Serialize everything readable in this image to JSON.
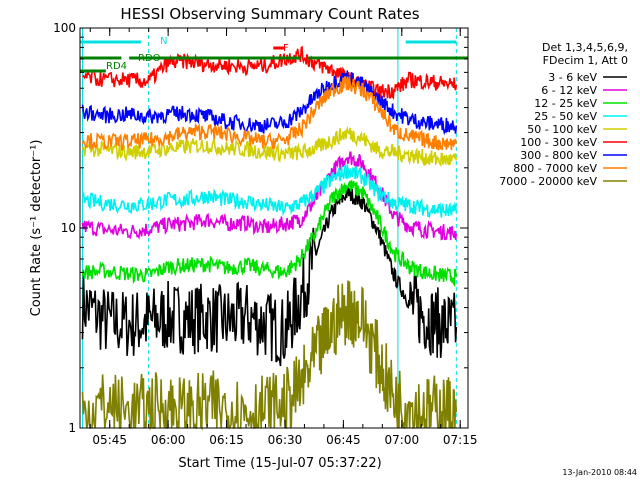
{
  "chart_data": {
    "type": "line",
    "title": "HESSI Observing Summary Count Rates",
    "xlabel": "Start Time (15-Jul-07 05:37:22)",
    "ylabel": "Count Rate (s⁻¹ detector⁻¹)",
    "footer": "13-Jan-2010 08:44",
    "y_scale": "log",
    "ylim": [
      1,
      100
    ],
    "xlim": [
      "05:37:22",
      "07:17:00"
    ],
    "x_ticks": [
      "05:45",
      "06:00",
      "06:15",
      "06:30",
      "06:45",
      "07:00",
      "07:15"
    ],
    "y_ticks": [
      "1",
      "10",
      "100"
    ],
    "legend_header": [
      "Det 1,3,4,5,6,9,",
      "FDecim 1, Att 0"
    ],
    "legend_position": "right",
    "grid": false,
    "x": [
      "05:38",
      "05:44",
      "05:50",
      "05:55",
      "06:00",
      "06:05",
      "06:10",
      "06:15",
      "06:20",
      "06:25",
      "06:30",
      "06:34",
      "06:38",
      "06:42",
      "06:46",
      "06:50",
      "06:54",
      "06:58",
      "07:02",
      "07:06",
      "07:10",
      "07:14"
    ],
    "series": [
      {
        "name": "3 - 6 keV",
        "color": "#000000",
        "values": [
          4.2,
          3.4,
          3.3,
          3.4,
          3.6,
          3.5,
          3.6,
          3.4,
          3.6,
          3.3,
          3.0,
          4.5,
          7.5,
          12.0,
          15.0,
          13.5,
          9.5,
          5.8,
          4.2,
          3.6,
          3.3,
          3.2
        ]
      },
      {
        "name": "6 - 12 keV",
        "color": "#e000e0",
        "values": [
          10.2,
          9.8,
          9.6,
          9.9,
          10.4,
          10.5,
          11.0,
          10.5,
          10.6,
          10.0,
          10.5,
          11.0,
          14.0,
          19.0,
          23.0,
          21.0,
          16.0,
          11.5,
          10.2,
          9.8,
          9.6,
          9.4
        ]
      },
      {
        "name": "12 - 25 keV",
        "color": "#00e000",
        "values": [
          6.0,
          6.1,
          5.9,
          5.8,
          6.4,
          6.5,
          6.6,
          6.3,
          6.5,
          6.2,
          6.0,
          7.0,
          9.5,
          14.0,
          16.5,
          15.0,
          11.0,
          7.5,
          6.4,
          6.0,
          5.8,
          5.7
        ]
      },
      {
        "name": "25 - 50 keV",
        "color": "#00f0f0",
        "values": [
          13.8,
          13.3,
          13.0,
          13.2,
          13.8,
          13.9,
          14.5,
          13.8,
          13.6,
          13.0,
          12.5,
          13.2,
          15.0,
          17.5,
          19.5,
          18.0,
          15.0,
          13.3,
          13.0,
          12.5,
          12.3,
          12.0
        ]
      },
      {
        "name": "50 - 100 keV",
        "color": "#d0d000",
        "values": [
          25.0,
          24.5,
          24.0,
          24.3,
          25.0,
          25.5,
          26.0,
          25.0,
          24.8,
          24.0,
          23.5,
          23.8,
          25.0,
          27.5,
          30.0,
          28.0,
          24.5,
          23.8,
          23.2,
          22.5,
          22.0,
          21.8
        ]
      },
      {
        "name": "100 - 300 keV",
        "color": "#ff0000",
        "values": [
          57.0,
          55.0,
          55.0,
          54.0,
          67.0,
          68.0,
          66.0,
          65.0,
          64.0,
          65.0,
          70.0,
          74.0,
          66.0,
          62.0,
          56.0,
          52.0,
          48.0,
          49.0,
          55.0,
          54.0,
          53.0,
          52.0
        ]
      },
      {
        "name": "300 - 800 keV",
        "color": "#0000ff",
        "values": [
          38.0,
          36.5,
          37.0,
          36.0,
          37.0,
          37.5,
          36.0,
          34.0,
          33.0,
          32.5,
          33.5,
          38.0,
          46.0,
          53.0,
          57.0,
          52.0,
          44.0,
          38.0,
          35.0,
          33.5,
          33.0,
          32.5
        ]
      },
      {
        "name": "800 - 7000 keV",
        "color": "#ff8000",
        "values": [
          27.5,
          27.0,
          27.0,
          27.5,
          28.5,
          30.0,
          30.5,
          29.5,
          28.0,
          27.0,
          27.5,
          31.0,
          40.0,
          49.0,
          53.0,
          49.0,
          40.0,
          31.0,
          28.5,
          27.5,
          26.5,
          26.5
        ]
      },
      {
        "name": "7000 - 20000 keV",
        "color": "#808000",
        "values": [
          1.2,
          1.3,
          1.2,
          1.25,
          1.3,
          1.2,
          1.3,
          1.25,
          1.2,
          1.25,
          1.3,
          1.6,
          2.3,
          3.2,
          4.0,
          3.5,
          2.2,
          1.4,
          1.3,
          1.2,
          1.25,
          1.2
        ]
      }
    ],
    "annotations": {
      "flag_labels": [
        "N",
        "RDO",
        "RD4",
        "F"
      ],
      "flag_colors": {
        "N": "#00e0e0",
        "RDO": "#008000",
        "RD4": "#008000",
        "F": "#ff0000"
      },
      "saa_vertical_lines": [
        "05:38",
        "05:55",
        "06:59",
        "07:14"
      ],
      "night_intervals": [
        [
          "05:37:22",
          "05:53"
        ],
        [
          "07:01",
          "07:14"
        ]
      ],
      "rdo_intervals": [
        [
          "05:37:22",
          "05:48"
        ],
        [
          "05:50",
          "06:34"
        ],
        [
          "06:36",
          "07:17"
        ]
      ],
      "rd4_intervals": [
        [
          "05:37:22",
          "05:44"
        ]
      ],
      "flare_interval": [
        [
          "06:27",
          "06:30"
        ]
      ]
    }
  }
}
